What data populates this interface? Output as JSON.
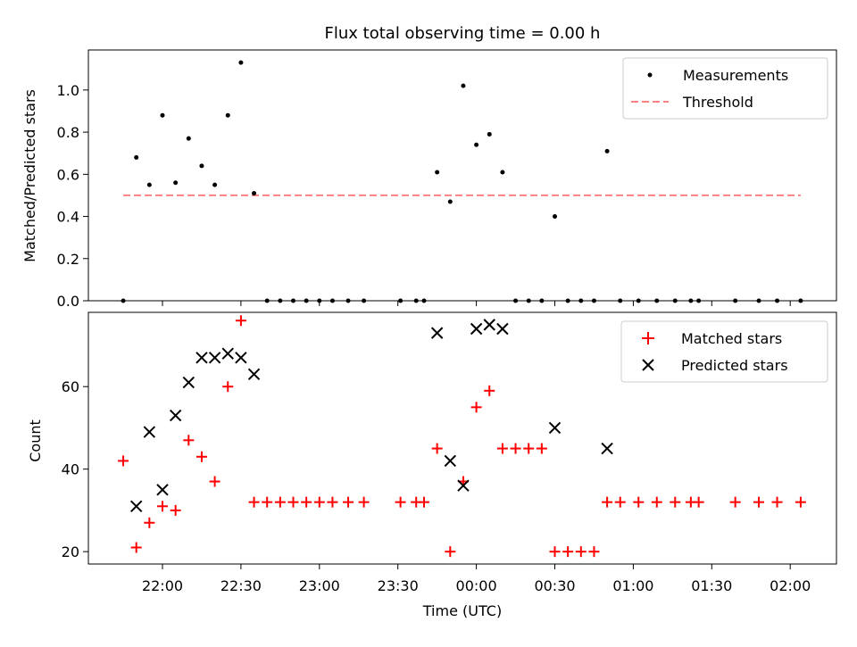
{
  "chart_data": [
    {
      "type": "scatter",
      "title": "Flux total observing time = 0.00 h",
      "xlabel": "",
      "ylabel": "Matched/Predicted stars",
      "x_unit": "time (UTC)",
      "ylim": [
        0,
        1.19
      ],
      "yticks": [
        0.0,
        0.2,
        0.4,
        0.6,
        0.8,
        1.0
      ],
      "ytick_labels": [
        "0.0",
        "0.2",
        "0.4",
        "0.6",
        "0.8",
        "1.0"
      ],
      "legend": {
        "placement": "top-right"
      },
      "series": [
        {
          "name": "Measurements",
          "marker": "dot",
          "color": "#000000",
          "points": [
            [
              "21:45",
              0.0
            ],
            [
              "21:50",
              0.68
            ],
            [
              "21:55",
              0.55
            ],
            [
              "22:00",
              0.88
            ],
            [
              "22:05",
              0.56
            ],
            [
              "22:10",
              0.77
            ],
            [
              "22:15",
              0.64
            ],
            [
              "22:20",
              0.55
            ],
            [
              "22:25",
              0.88
            ],
            [
              "22:30",
              1.13
            ],
            [
              "22:35",
              0.51
            ],
            [
              "22:40",
              0.0
            ],
            [
              "22:45",
              0.0
            ],
            [
              "22:50",
              0.0
            ],
            [
              "22:55",
              0.0
            ],
            [
              "23:00",
              0.0
            ],
            [
              "23:05",
              0.0
            ],
            [
              "23:11",
              0.0
            ],
            [
              "23:17",
              0.0
            ],
            [
              "23:31",
              0.0
            ],
            [
              "23:37",
              0.0
            ],
            [
              "23:40",
              0.0
            ],
            [
              "23:45",
              0.61
            ],
            [
              "23:50",
              0.47
            ],
            [
              "23:55",
              1.02
            ],
            [
              "00:00",
              0.74
            ],
            [
              "00:05",
              0.79
            ],
            [
              "00:10",
              0.61
            ],
            [
              "00:15",
              0.0
            ],
            [
              "00:20",
              0.0
            ],
            [
              "00:25",
              0.0
            ],
            [
              "00:30",
              0.4
            ],
            [
              "00:35",
              0.0
            ],
            [
              "00:40",
              0.0
            ],
            [
              "00:45",
              0.0
            ],
            [
              "00:50",
              0.71
            ],
            [
              "00:55",
              0.0
            ],
            [
              "01:02",
              0.0
            ],
            [
              "01:09",
              0.0
            ],
            [
              "01:16",
              0.0
            ],
            [
              "01:22",
              0.0
            ],
            [
              "01:25",
              0.0
            ],
            [
              "01:39",
              0.0
            ],
            [
              "01:48",
              0.0
            ],
            [
              "01:55",
              0.0
            ],
            [
              "02:04",
              0.0
            ]
          ]
        },
        {
          "name": "Threshold",
          "marker": "dashed-line",
          "color": "#ff8080",
          "points": [
            [
              "21:45",
              0.5
            ],
            [
              "02:04",
              0.5
            ]
          ]
        }
      ]
    },
    {
      "type": "scatter",
      "title": "",
      "xlabel": "Time (UTC)",
      "ylabel": "Count",
      "ylim": [
        17,
        78
      ],
      "yticks": [
        20,
        40,
        60
      ],
      "ytick_labels": [
        "20",
        "40",
        "60"
      ],
      "xticks": [
        "22:00",
        "22:30",
        "23:00",
        "23:30",
        "00:00",
        "00:30",
        "01:00",
        "01:30",
        "02:00"
      ],
      "legend": {
        "placement": "top-right"
      },
      "series": [
        {
          "name": "Matched stars",
          "marker": "plus",
          "color": "#ff0000",
          "points": [
            [
              "21:45",
              42
            ],
            [
              "21:50",
              21
            ],
            [
              "21:55",
              27
            ],
            [
              "22:00",
              31
            ],
            [
              "22:05",
              30
            ],
            [
              "22:10",
              47
            ],
            [
              "22:15",
              43
            ],
            [
              "22:20",
              37
            ],
            [
              "22:25",
              60
            ],
            [
              "22:30",
              76
            ],
            [
              "22:35",
              32
            ],
            [
              "22:40",
              32
            ],
            [
              "22:45",
              32
            ],
            [
              "22:50",
              32
            ],
            [
              "22:55",
              32
            ],
            [
              "23:00",
              32
            ],
            [
              "23:05",
              32
            ],
            [
              "23:11",
              32
            ],
            [
              "23:17",
              32
            ],
            [
              "23:31",
              32
            ],
            [
              "23:37",
              32
            ],
            [
              "23:40",
              32
            ],
            [
              "23:45",
              45
            ],
            [
              "23:50",
              20
            ],
            [
              "23:55",
              37
            ],
            [
              "00:00",
              55
            ],
            [
              "00:05",
              59
            ],
            [
              "00:10",
              45
            ],
            [
              "00:15",
              45
            ],
            [
              "00:20",
              45
            ],
            [
              "00:25",
              45
            ],
            [
              "00:30",
              20
            ],
            [
              "00:35",
              20
            ],
            [
              "00:40",
              20
            ],
            [
              "00:45",
              20
            ],
            [
              "00:50",
              32
            ],
            [
              "00:55",
              32
            ],
            [
              "01:02",
              32
            ],
            [
              "01:09",
              32
            ],
            [
              "01:16",
              32
            ],
            [
              "01:22",
              32
            ],
            [
              "01:25",
              32
            ],
            [
              "01:39",
              32
            ],
            [
              "01:48",
              32
            ],
            [
              "01:55",
              32
            ],
            [
              "02:04",
              32
            ]
          ]
        },
        {
          "name": "Predicted stars",
          "marker": "x",
          "color": "#000000",
          "points": [
            [
              "21:50",
              31
            ],
            [
              "21:55",
              49
            ],
            [
              "22:00",
              35
            ],
            [
              "22:05",
              53
            ],
            [
              "22:10",
              61
            ],
            [
              "22:15",
              67
            ],
            [
              "22:20",
              67
            ],
            [
              "22:25",
              68
            ],
            [
              "22:30",
              67
            ],
            [
              "22:35",
              63
            ],
            [
              "23:45",
              73
            ],
            [
              "23:50",
              42
            ],
            [
              "23:55",
              36
            ],
            [
              "00:00",
              74
            ],
            [
              "00:05",
              75
            ],
            [
              "00:10",
              74
            ],
            [
              "00:30",
              50
            ],
            [
              "00:50",
              45
            ]
          ]
        }
      ]
    }
  ]
}
